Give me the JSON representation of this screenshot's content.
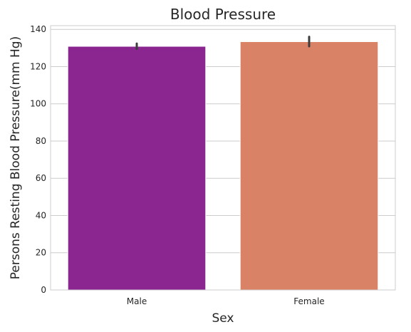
{
  "chart_data": {
    "type": "bar",
    "title": "Blood Pressure",
    "xlabel": "Sex",
    "ylabel": "Persons Resting Blood Pressure(mm Hg)",
    "categories": [
      "Male",
      "Female"
    ],
    "values": [
      130.9,
      133.4
    ],
    "error_bars": [
      [
        129.5,
        132.4
      ],
      [
        130.9,
        136.0
      ]
    ],
    "colors": [
      "#8B2690",
      "#DA8266"
    ],
    "ylim": [
      0,
      142
    ],
    "yticks": [
      0,
      20,
      40,
      60,
      80,
      100,
      120,
      140
    ],
    "grid": "horizontal",
    "background": "#ffffff"
  }
}
